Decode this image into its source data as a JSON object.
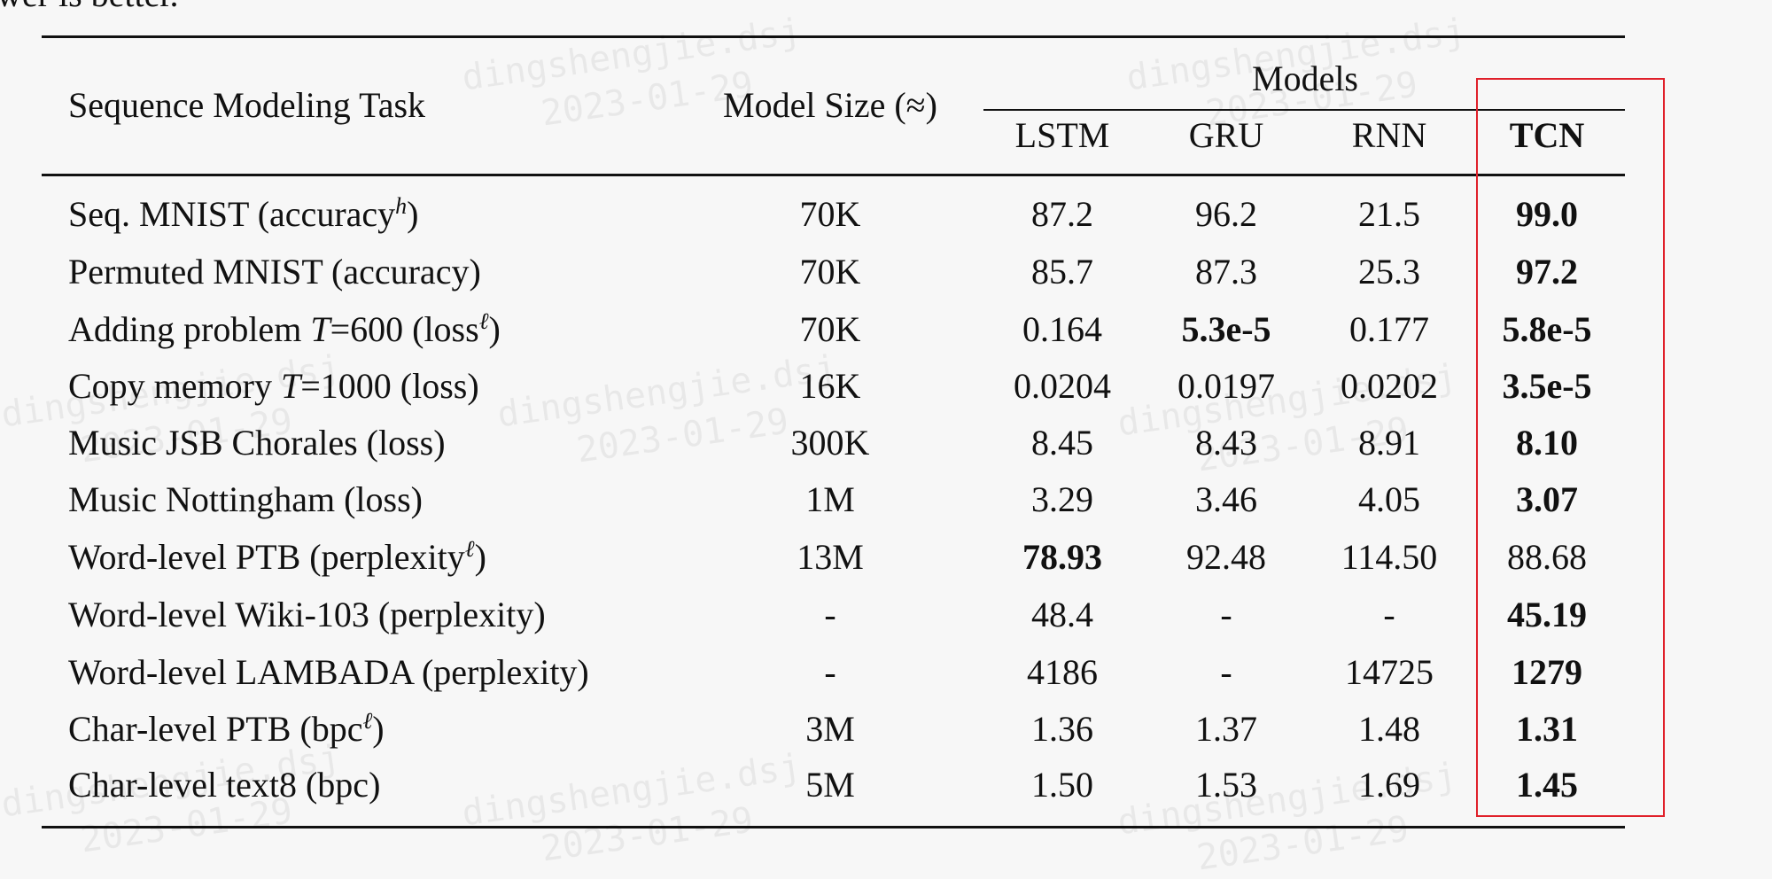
{
  "caption_fragment": "wer is better.",
  "watermark": {
    "name": "dingshengjie.dsj",
    "date": "2023-01-29"
  },
  "table": {
    "header": {
      "task": "Sequence Modeling Task",
      "size": "Model Size (≈)",
      "models_group": "Models",
      "models": [
        "LSTM",
        "GRU",
        "RNN",
        "TCN"
      ],
      "bold_model": 3
    },
    "rows": [
      {
        "task": [
          {
            "text": "Seq. MNIST (accuracy"
          },
          {
            "text": "h",
            "style": "sup"
          },
          {
            "text": ")"
          }
        ],
        "size": "70K",
        "values": [
          "87.2",
          "96.2",
          "21.5",
          "99.0"
        ],
        "bold": [
          3
        ]
      },
      {
        "task": [
          {
            "text": "Permuted MNIST (accuracy)"
          }
        ],
        "size": "70K",
        "values": [
          "85.7",
          "87.3",
          "25.3",
          "97.2"
        ],
        "bold": [
          3
        ]
      },
      {
        "task": [
          {
            "text": "Adding problem "
          },
          {
            "text": "T",
            "style": "italic"
          },
          {
            "text": "=600 (loss"
          },
          {
            "text": "ℓ",
            "style": "sup"
          },
          {
            "text": ")"
          }
        ],
        "size": "70K",
        "values": [
          "0.164",
          "5.3e-5",
          "0.177",
          "5.8e-5"
        ],
        "bold": [
          1,
          3
        ]
      },
      {
        "task": [
          {
            "text": "Copy memory "
          },
          {
            "text": "T",
            "style": "italic"
          },
          {
            "text": "=1000 (loss)"
          }
        ],
        "size": "16K",
        "values": [
          "0.0204",
          "0.0197",
          "0.0202",
          "3.5e-5"
        ],
        "bold": [
          3
        ]
      },
      {
        "task": [
          {
            "text": "Music JSB Chorales (loss)"
          }
        ],
        "size": "300K",
        "values": [
          "8.45",
          "8.43",
          "8.91",
          "8.10"
        ],
        "bold": [
          3
        ]
      },
      {
        "task": [
          {
            "text": "Music Nottingham (loss)"
          }
        ],
        "size": "1M",
        "values": [
          "3.29",
          "3.46",
          "4.05",
          "3.07"
        ],
        "bold": [
          3
        ]
      },
      {
        "task": [
          {
            "text": "Word-level PTB (perplexity"
          },
          {
            "text": "ℓ",
            "style": "sup"
          },
          {
            "text": ")"
          }
        ],
        "size": "13M",
        "values": [
          "78.93",
          "92.48",
          "114.50",
          "88.68"
        ],
        "bold": [
          0
        ]
      },
      {
        "task": [
          {
            "text": "Word-level Wiki-103 (perplexity)"
          }
        ],
        "size": "-",
        "values": [
          "48.4",
          "-",
          "-",
          "45.19"
        ],
        "bold": [
          3
        ]
      },
      {
        "task": [
          {
            "text": "Word-level LAMBADA (perplexity)"
          }
        ],
        "size": "-",
        "values": [
          "4186",
          "-",
          "14725",
          "1279"
        ],
        "bold": [
          3
        ]
      },
      {
        "task": [
          {
            "text": "Char-level PTB (bpc"
          },
          {
            "text": "ℓ",
            "style": "sup"
          },
          {
            "text": ")"
          }
        ],
        "size": "3M",
        "values": [
          "1.36",
          "1.37",
          "1.48",
          "1.31"
        ],
        "bold": [
          3
        ]
      },
      {
        "task": [
          {
            "text": "Char-level text8 (bpc)"
          }
        ],
        "size": "5M",
        "values": [
          "1.50",
          "1.53",
          "1.69",
          "1.45"
        ],
        "bold": [
          3
        ]
      }
    ]
  }
}
